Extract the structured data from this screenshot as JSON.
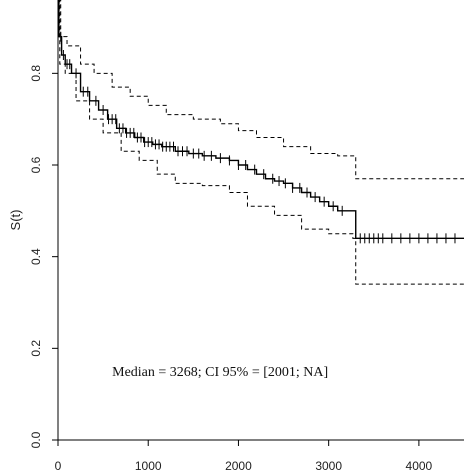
{
  "chart_data": {
    "type": "line",
    "title": "",
    "xlabel": "",
    "ylabel": "S(t)",
    "xlim": [
      0,
      4500
    ],
    "ylim": [
      0.0,
      0.96
    ],
    "x_ticks": [
      "0",
      "1000",
      "2000",
      "3000",
      "4000"
    ],
    "y_ticks": [
      "0.0",
      "0.2",
      "0.4",
      "0.6",
      "0.8"
    ],
    "grid": false,
    "legend": "none",
    "annotation": "Median = 3268; CI 95% = [2001; NA]",
    "series": [
      {
        "role": "estimate",
        "style": "solid",
        "points": [
          [
            0,
            0.96
          ],
          [
            10,
            0.88
          ],
          [
            40,
            0.84
          ],
          [
            80,
            0.82
          ],
          [
            150,
            0.8
          ],
          [
            250,
            0.76
          ],
          [
            350,
            0.74
          ],
          [
            450,
            0.72
          ],
          [
            550,
            0.7
          ],
          [
            650,
            0.68
          ],
          [
            750,
            0.67
          ],
          [
            850,
            0.66
          ],
          [
            950,
            0.65
          ],
          [
            1050,
            0.645
          ],
          [
            1150,
            0.64
          ],
          [
            1300,
            0.63
          ],
          [
            1450,
            0.625
          ],
          [
            1600,
            0.62
          ],
          [
            1750,
            0.615
          ],
          [
            1900,
            0.61
          ],
          [
            2000,
            0.6
          ],
          [
            2100,
            0.59
          ],
          [
            2200,
            0.58
          ],
          [
            2300,
            0.57
          ],
          [
            2400,
            0.565
          ],
          [
            2500,
            0.56
          ],
          [
            2600,
            0.55
          ],
          [
            2700,
            0.54
          ],
          [
            2800,
            0.53
          ],
          [
            2900,
            0.52
          ],
          [
            3000,
            0.51
          ],
          [
            3100,
            0.5
          ],
          [
            3200,
            0.5
          ],
          [
            3268,
            0.5
          ],
          [
            3300,
            0.44
          ],
          [
            4500,
            0.44
          ]
        ],
        "censor_times": [
          30,
          60,
          100,
          130,
          200,
          280,
          330,
          420,
          500,
          560,
          600,
          640,
          680,
          720,
          760,
          800,
          840,
          880,
          920,
          960,
          1000,
          1040,
          1080,
          1120,
          1160,
          1200,
          1240,
          1280,
          1330,
          1380,
          1430,
          1500,
          1560,
          1620,
          1700,
          1800,
          1900,
          2000,
          2080,
          2180,
          2280,
          2380,
          2450,
          2520,
          2600,
          2680,
          2760,
          2850,
          2950,
          3050,
          3150,
          3350,
          3400,
          3450,
          3500,
          3550,
          3600,
          3700,
          3800,
          3900,
          4000,
          4100,
          4200,
          4300,
          4400
        ]
      },
      {
        "role": "upper_ci",
        "style": "dashed",
        "points": [
          [
            0,
            0.96
          ],
          [
            30,
            0.88
          ],
          [
            100,
            0.86
          ],
          [
            250,
            0.82
          ],
          [
            400,
            0.8
          ],
          [
            600,
            0.77
          ],
          [
            800,
            0.75
          ],
          [
            1000,
            0.73
          ],
          [
            1200,
            0.71
          ],
          [
            1500,
            0.7
          ],
          [
            1800,
            0.69
          ],
          [
            2000,
            0.675
          ],
          [
            2200,
            0.66
          ],
          [
            2500,
            0.64
          ],
          [
            2800,
            0.625
          ],
          [
            3100,
            0.62
          ],
          [
            3268,
            0.62
          ],
          [
            3300,
            0.57
          ],
          [
            4500,
            0.57
          ]
        ]
      },
      {
        "role": "lower_ci",
        "style": "dashed",
        "points": [
          [
            0,
            0.96
          ],
          [
            20,
            0.82
          ],
          [
            80,
            0.8
          ],
          [
            200,
            0.74
          ],
          [
            350,
            0.7
          ],
          [
            500,
            0.67
          ],
          [
            700,
            0.63
          ],
          [
            900,
            0.61
          ],
          [
            1100,
            0.58
          ],
          [
            1300,
            0.56
          ],
          [
            1600,
            0.555
          ],
          [
            1900,
            0.54
          ],
          [
            2100,
            0.51
          ],
          [
            2400,
            0.49
          ],
          [
            2700,
            0.46
          ],
          [
            3000,
            0.45
          ],
          [
            3268,
            0.44
          ],
          [
            3300,
            0.34
          ],
          [
            4500,
            0.34
          ]
        ]
      }
    ]
  }
}
